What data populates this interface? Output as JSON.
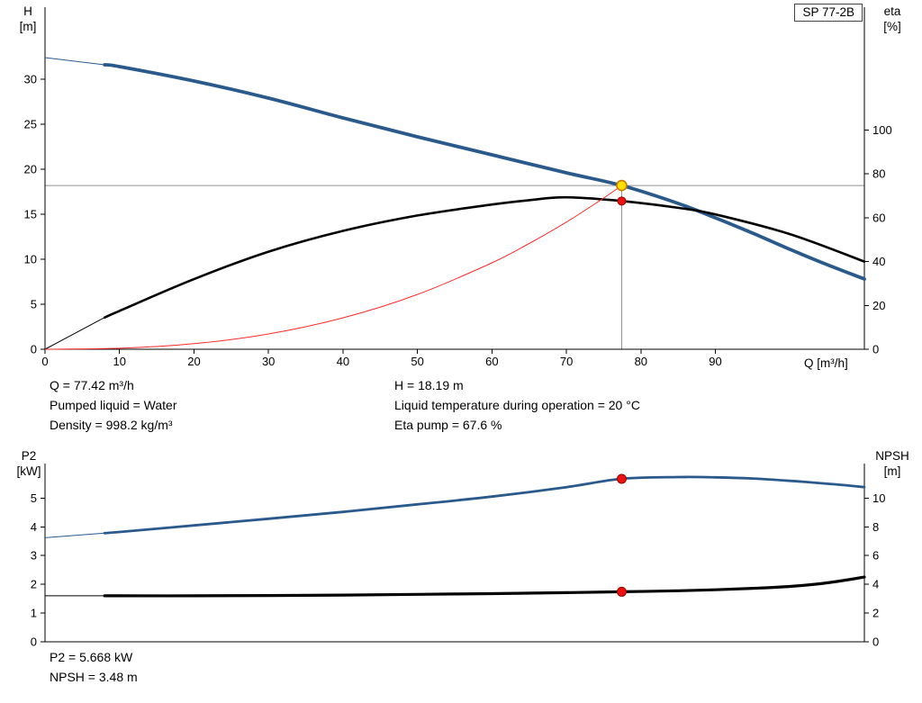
{
  "pump_model_box": "SP 77-2B",
  "info_top": {
    "col1": [
      "Q = 77.42 m³/h",
      "Pumped liquid = Water",
      "Density = 998.2 kg/m³"
    ],
    "col2": [
      "H = 18.19 m",
      "Liquid temperature during operation = 20 °C",
      "Eta pump = 67.6 %"
    ]
  },
  "info_bottom": [
    "P2 = 5.668 kW",
    "NPSH = 3.48 m"
  ],
  "colors": {
    "head": "#2a5a8c",
    "eta": "#000000",
    "system": "#ff2a2a",
    "marker_red": "#ee1111",
    "marker_red_ring": "#990000",
    "marker_yellow": "#ffe100",
    "marker_yellow_ring": "#cc7a00",
    "crosshair": "#909090",
    "axis": "#000000"
  },
  "chart_data": [
    {
      "type": "line",
      "name": "qh-eta-chart",
      "x_axis": {
        "label": "Q [m³/h]",
        "range": [
          0,
          110
        ],
        "ticks": [
          0,
          10,
          20,
          30,
          40,
          50,
          60,
          70,
          80,
          90
        ]
      },
      "left_axis": {
        "label": "H",
        "unit": "[m]",
        "range": [
          0,
          38
        ],
        "ticks": [
          0,
          5,
          10,
          15,
          20,
          25,
          30
        ]
      },
      "right_axis": {
        "label": "eta",
        "unit": "[%]",
        "range": [
          0,
          156
        ],
        "ticks": [
          0,
          20,
          40,
          60,
          80,
          100
        ]
      },
      "series": [
        {
          "name": "head-curve",
          "axis": "left",
          "color_key": "head",
          "width": 3.8,
          "thin_until": 8,
          "x": [
            0,
            8,
            10,
            20,
            30,
            40,
            50,
            60,
            70,
            77.42,
            85,
            90,
            95,
            100,
            105,
            110
          ],
          "y": [
            32.4,
            31.6,
            31.4,
            29.8,
            27.9,
            25.7,
            23.6,
            21.6,
            19.6,
            18.19,
            16.2,
            14.6,
            12.9,
            11.1,
            9.4,
            7.8
          ]
        },
        {
          "name": "eta-curve",
          "axis": "right",
          "color_key": "eta",
          "width": 2.6,
          "thin_until": 8,
          "x": [
            0,
            8,
            10,
            20,
            30,
            40,
            50,
            60,
            65,
            70,
            77.42,
            85,
            90,
            100,
            110
          ],
          "y": [
            0,
            14.5,
            17.5,
            32,
            44.5,
            54,
            61,
            66,
            68,
            69.3,
            67.6,
            64.5,
            61.5,
            52.5,
            40
          ]
        },
        {
          "name": "system-curve",
          "axis": "left",
          "color_key": "system",
          "width": 1,
          "thin_until": null,
          "x": [
            0,
            10,
            20,
            30,
            40,
            50,
            60,
            65,
            70,
            75,
            77.42
          ],
          "y": [
            0,
            0.11,
            0.62,
            1.7,
            3.49,
            6.09,
            9.6,
            11.75,
            14.13,
            16.8,
            18.19
          ]
        }
      ],
      "duty_point": {
        "q": 77.42,
        "h": 18.19,
        "eta": 67.6
      }
    },
    {
      "type": "line",
      "name": "p2-npsh-chart",
      "x_axis": {
        "label": "",
        "range": [
          0,
          110
        ],
        "ticks": []
      },
      "left_axis": {
        "label": "P2",
        "unit": "[kW]",
        "range": [
          0,
          6.2
        ],
        "ticks": [
          0,
          1,
          2,
          3,
          4,
          5
        ]
      },
      "right_axis": {
        "label": "NPSH",
        "unit": "[m]",
        "range": [
          0,
          12.4
        ],
        "ticks": [
          0,
          2,
          4,
          6,
          8,
          10
        ]
      },
      "series": [
        {
          "name": "p2-curve",
          "axis": "left",
          "color_key": "head",
          "width": 2.8,
          "thin_until": 8,
          "x": [
            0,
            8,
            10,
            20,
            30,
            40,
            50,
            60,
            70,
            77.42,
            85,
            90,
            95,
            100,
            105,
            110
          ],
          "y": [
            3.62,
            3.78,
            3.82,
            4.05,
            4.28,
            4.52,
            4.78,
            5.05,
            5.38,
            5.67,
            5.73,
            5.72,
            5.68,
            5.6,
            5.5,
            5.38
          ]
        },
        {
          "name": "npsh-curve",
          "axis": "right",
          "color_key": "eta",
          "width": 3.2,
          "thin_until": 8,
          "x": [
            0,
            8,
            10,
            20,
            30,
            40,
            50,
            60,
            70,
            77.42,
            85,
            90,
            95,
            100,
            105,
            110
          ],
          "y": [
            3.2,
            3.2,
            3.2,
            3.2,
            3.22,
            3.25,
            3.3,
            3.35,
            3.42,
            3.48,
            3.55,
            3.62,
            3.72,
            3.85,
            4.1,
            4.5
          ]
        }
      ],
      "duty_markers": [
        {
          "name": "p2-duty-marker",
          "q": 77.42,
          "value": 5.668,
          "axis": "left"
        },
        {
          "name": "npsh-duty-marker",
          "q": 77.42,
          "value": 3.48,
          "axis": "right"
        }
      ]
    }
  ]
}
